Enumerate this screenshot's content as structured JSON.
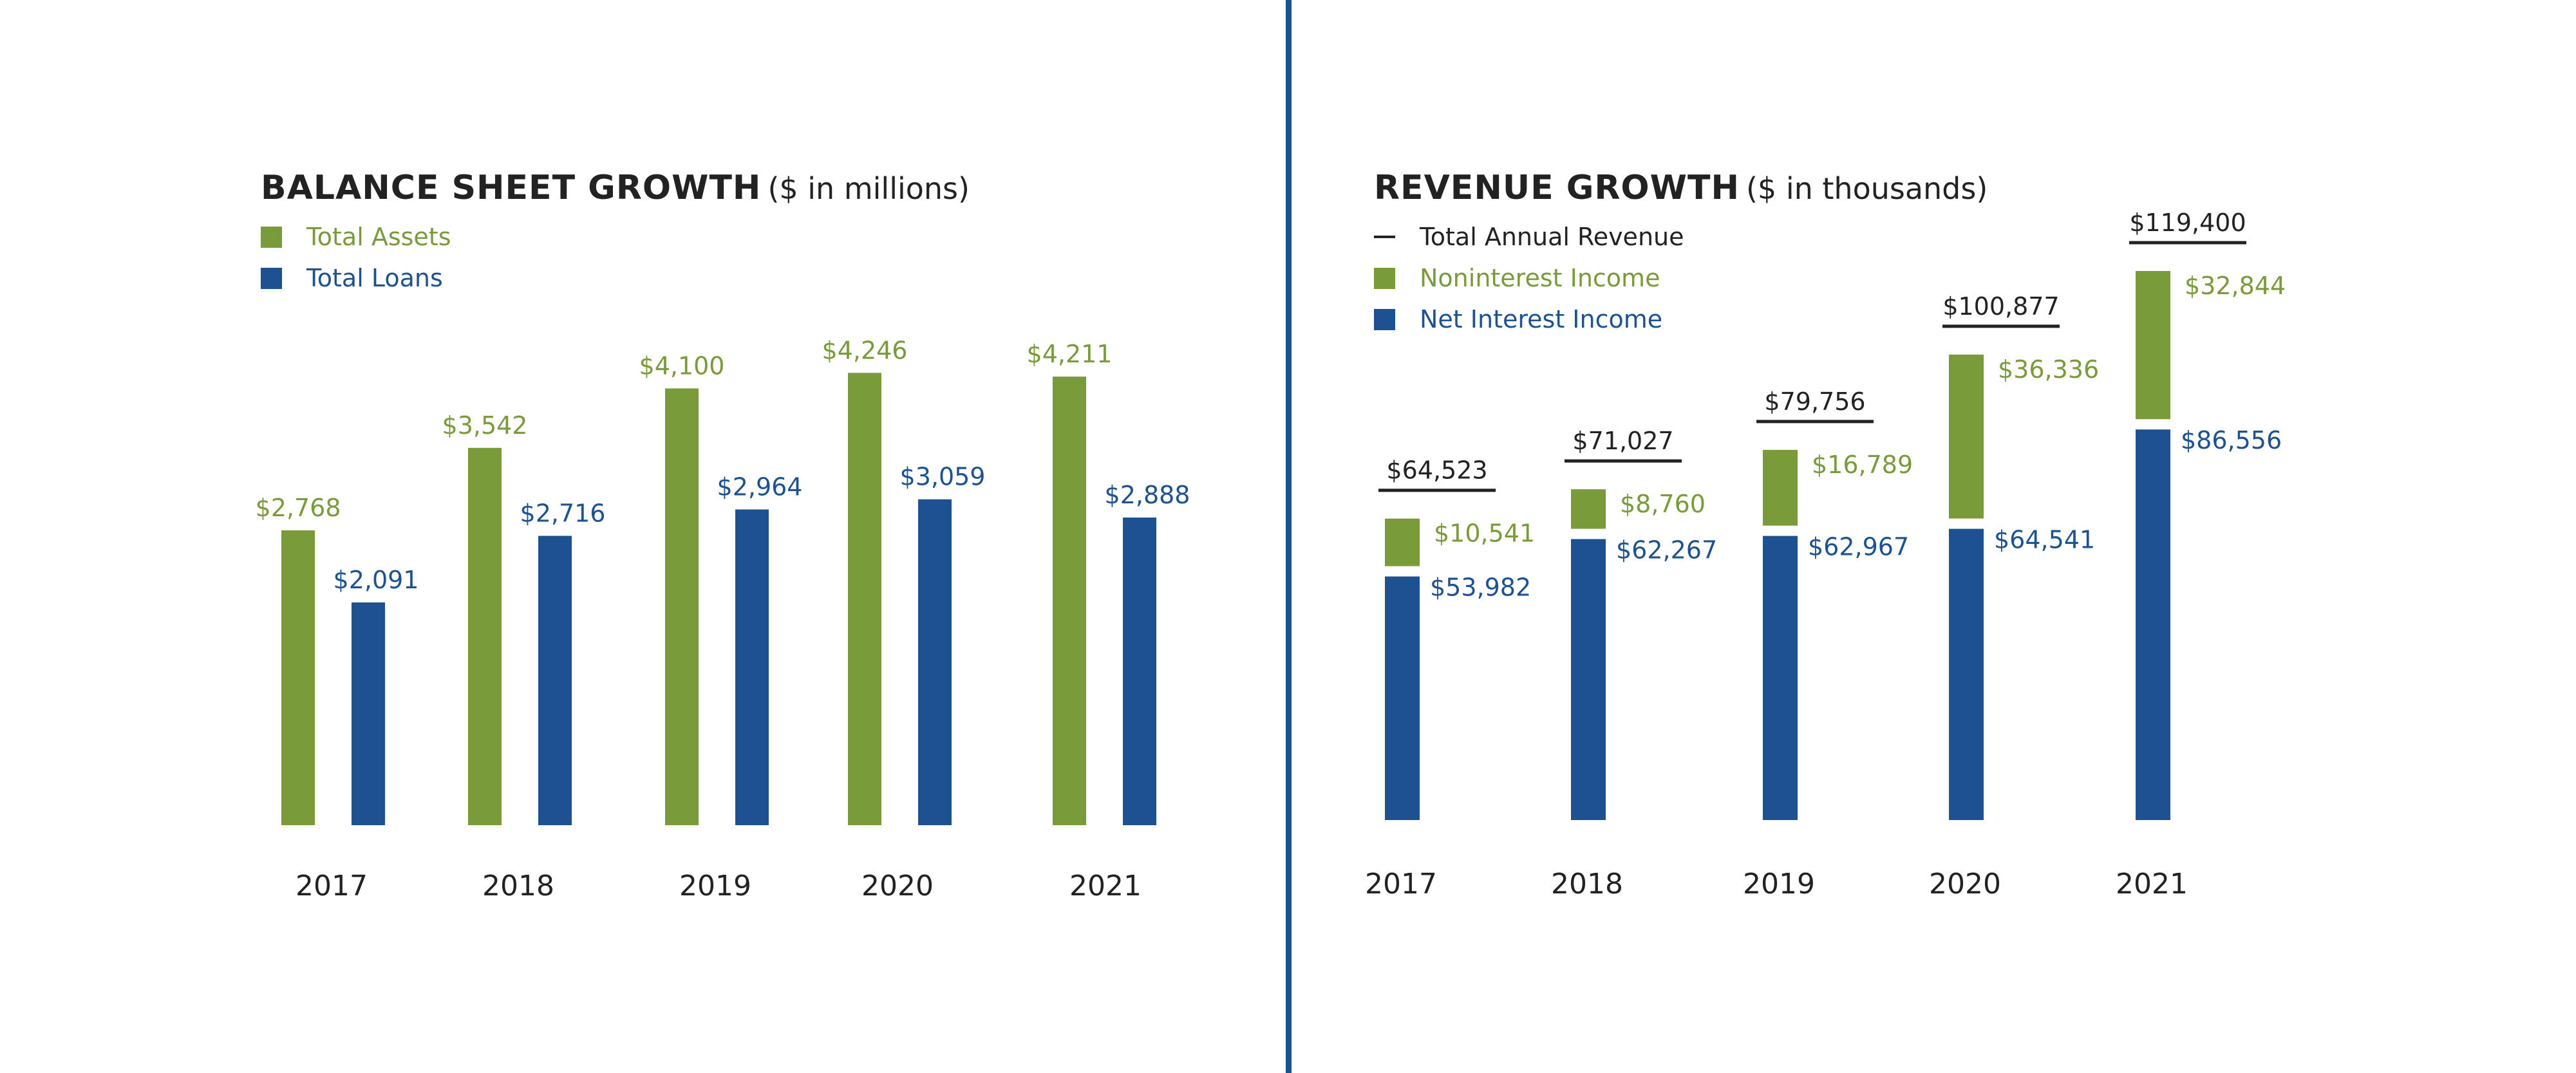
{
  "colors": {
    "green": "#7a9b39",
    "blue": "#1d5290",
    "text_dark": "#222222",
    "divider": "#1d5290"
  },
  "left": {
    "title": "BALANCE SHEET GROWTH",
    "subtitle": "($ in millions)",
    "legend": [
      {
        "label": "Total Assets",
        "color": "#7a9b39"
      },
      {
        "label": "Total Loans",
        "color": "#1d5290"
      }
    ]
  },
  "right": {
    "title": "REVENUE GROWTH",
    "subtitle": "($ in thousands)",
    "legend": [
      {
        "label": "Total Annual Revenue",
        "color": "#222222",
        "marker": "line"
      },
      {
        "label": "Noninterest Income",
        "color": "#7a9b39"
      },
      {
        "label": "Net Interest Income",
        "color": "#1d5290"
      }
    ]
  },
  "chart_data": [
    {
      "type": "bar",
      "title": "BALANCE SHEET GROWTH",
      "subtitle": "($ in millions)",
      "categories": [
        "2017",
        "2018",
        "2019",
        "2020",
        "2021"
      ],
      "series": [
        {
          "name": "Total Assets",
          "color": "#7a9b39",
          "values": [
            2768,
            3542,
            4100,
            4246,
            4211
          ],
          "labels": [
            "$2,768",
            "$3,542",
            "$4,100",
            "$4,246",
            "$4,211"
          ]
        },
        {
          "name": "Total Loans",
          "color": "#1d5290",
          "values": [
            2091,
            2716,
            2964,
            3059,
            2888
          ],
          "labels": [
            "$2,091",
            "$2,716",
            "$2,964",
            "$3,059",
            "$2,888"
          ]
        }
      ],
      "ylim": [
        0,
        4500
      ],
      "grid": false,
      "legend_position": "top-left"
    },
    {
      "type": "bar",
      "stacked": true,
      "title": "REVENUE GROWTH",
      "subtitle": "($ in thousands)",
      "categories": [
        "2017",
        "2018",
        "2019",
        "2020",
        "2021"
      ],
      "series": [
        {
          "name": "Net Interest Income",
          "color": "#1d5290",
          "values": [
            53982,
            62267,
            62967,
            64541,
            86556
          ],
          "labels": [
            "$53,982",
            "$62,267",
            "$62,967",
            "$64,541",
            "$86,556"
          ]
        },
        {
          "name": "Noninterest Income",
          "color": "#7a9b39",
          "values": [
            10541,
            8760,
            16789,
            36336,
            32844
          ],
          "labels": [
            "$10,541",
            "$8,760",
            "$16,789",
            "$36,336",
            "$32,844"
          ]
        }
      ],
      "totals": {
        "name": "Total Annual Revenue",
        "values": [
          64523,
          71027,
          79756,
          100877,
          119400
        ],
        "labels": [
          "$64,523",
          "$71,027",
          "$79,756",
          "$100,877",
          "$119,400"
        ]
      },
      "ylim": [
        0,
        130000
      ],
      "grid": false,
      "legend_position": "top-left"
    }
  ]
}
